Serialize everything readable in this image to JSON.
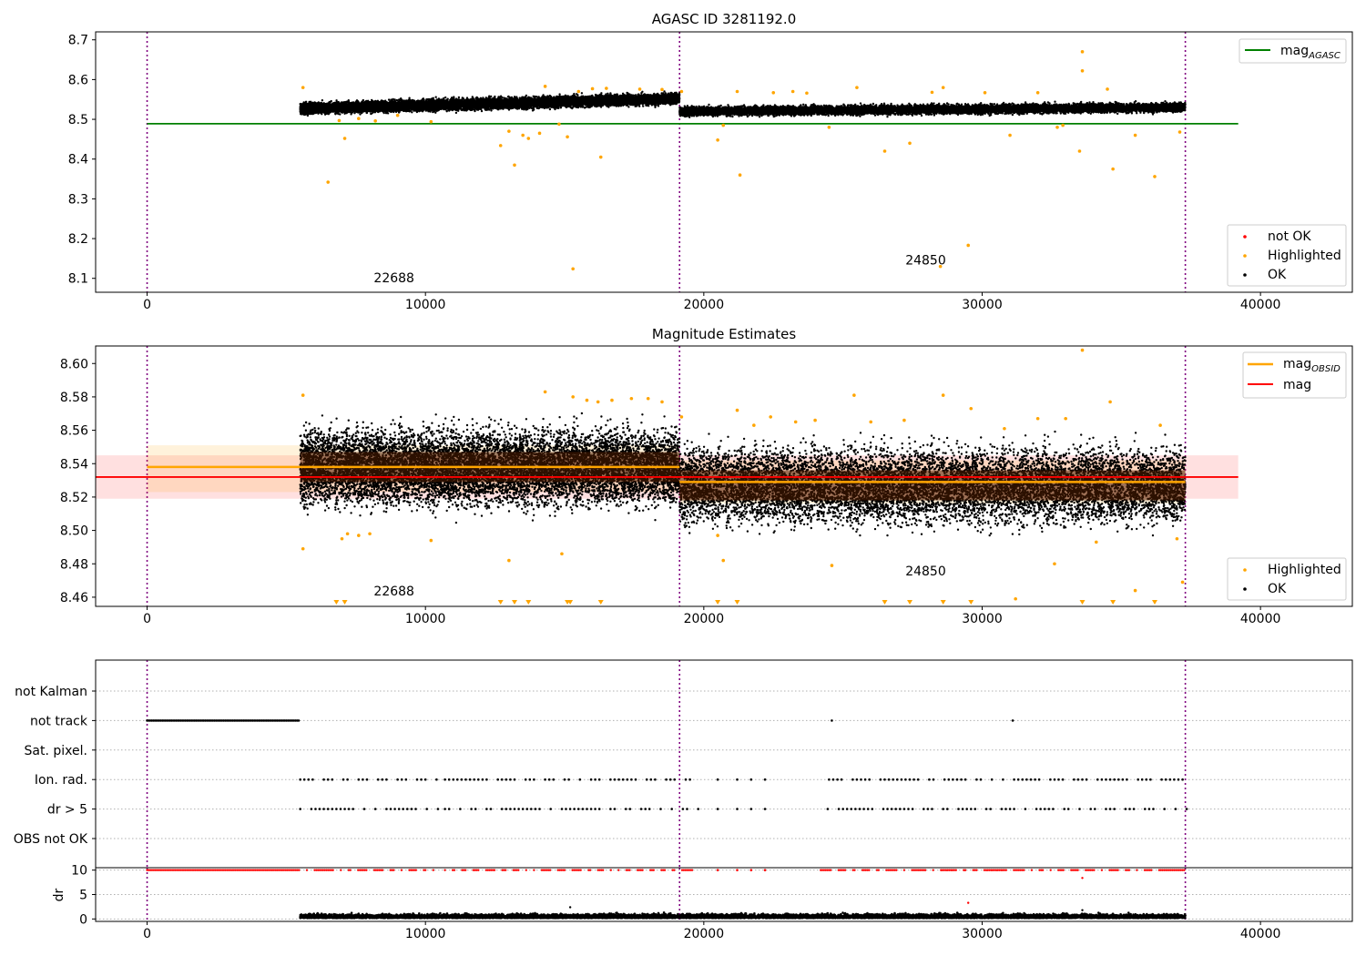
{
  "chart_data": [
    {
      "type": "scatter",
      "title": "AGASC ID 3281192.0",
      "xlim": [
        -1850,
        43300
      ],
      "ylim": [
        8.065,
        8.72
      ],
      "xticks": [
        0,
        10000,
        20000,
        30000,
        40000
      ],
      "yticks": [
        8.1,
        8.2,
        8.3,
        8.4,
        8.5,
        8.6,
        8.7
      ],
      "vlines": [
        0,
        19130,
        37300
      ],
      "mag_agasc": {
        "y": 8.489,
        "x0": 0,
        "x1": 39200
      },
      "obsid_labels": [
        {
          "text": "22688",
          "x": 9600,
          "y": 8.09
        },
        {
          "text": "24850",
          "x": 28700,
          "y": 8.135
        }
      ],
      "legend_top": [
        {
          "label": "mag",
          "sub": "AGASC",
          "color": "#008000"
        }
      ],
      "legend_bottom": [
        {
          "label": "not OK",
          "color": "#ff0000"
        },
        {
          "label": "Highlighted",
          "color": "#ffa500"
        },
        {
          "label": "OK",
          "color": "#000000"
        }
      ],
      "segments": [
        {
          "x0": 5500,
          "x1": 19130,
          "center": 8.538,
          "spread": 0.012,
          "trend": [
            8.527,
            8.552
          ]
        },
        {
          "x0": 19130,
          "x1": 37300,
          "center": 8.525,
          "spread": 0.01,
          "trend": [
            8.52,
            8.53
          ]
        }
      ],
      "highlighted": [
        [
          5600,
          8.58
        ],
        [
          6500,
          8.342
        ],
        [
          6900,
          8.497
        ],
        [
          7100,
          8.452
        ],
        [
          7600,
          8.502
        ],
        [
          8200,
          8.496
        ],
        [
          9000,
          8.51
        ],
        [
          10200,
          8.494
        ],
        [
          12700,
          8.434
        ],
        [
          13000,
          8.47
        ],
        [
          13200,
          8.385
        ],
        [
          13500,
          8.46
        ],
        [
          13700,
          8.452
        ],
        [
          14100,
          8.465
        ],
        [
          14300,
          8.583
        ],
        [
          14800,
          8.488
        ],
        [
          15100,
          8.456
        ],
        [
          15300,
          8.124
        ],
        [
          15500,
          8.57
        ],
        [
          16000,
          8.577
        ],
        [
          16300,
          8.405
        ],
        [
          16500,
          8.578
        ],
        [
          17700,
          8.576
        ],
        [
          18500,
          8.575
        ],
        [
          19200,
          8.57
        ],
        [
          20500,
          8.448
        ],
        [
          20700,
          8.485
        ],
        [
          21200,
          8.57
        ],
        [
          21300,
          8.36
        ],
        [
          22500,
          8.567
        ],
        [
          23200,
          8.57
        ],
        [
          23700,
          8.566
        ],
        [
          24500,
          8.48
        ],
        [
          25500,
          8.58
        ],
        [
          26500,
          8.42
        ],
        [
          27400,
          8.44
        ],
        [
          28200,
          8.568
        ],
        [
          28500,
          8.13
        ],
        [
          28600,
          8.58
        ],
        [
          29500,
          8.183
        ],
        [
          30100,
          8.567
        ],
        [
          31000,
          8.46
        ],
        [
          32000,
          8.567
        ],
        [
          32700,
          8.48
        ],
        [
          32900,
          8.485
        ],
        [
          33500,
          8.42
        ],
        [
          33600,
          8.67
        ],
        [
          33600,
          8.622
        ],
        [
          34500,
          8.576
        ],
        [
          34700,
          8.375
        ],
        [
          35500,
          8.46
        ],
        [
          36200,
          8.356
        ],
        [
          37100,
          8.468
        ]
      ]
    },
    {
      "type": "scatter",
      "title": "Magnitude Estimates",
      "xlim": [
        -1850,
        43300
      ],
      "ylim": [
        8.4545,
        8.6105
      ],
      "xticks": [
        0,
        10000,
        20000,
        30000,
        40000
      ],
      "yticks": [
        8.46,
        8.48,
        8.5,
        8.52,
        8.54,
        8.56,
        8.58,
        8.6
      ],
      "vlines": [
        0,
        19130,
        37300
      ],
      "mag": {
        "y": 8.532,
        "band": [
          8.519,
          8.545
        ],
        "x0": -1850,
        "x1": 39200
      },
      "mag_obsid": [
        {
          "x0": 0,
          "x1": 19130,
          "y": 8.538,
          "band": [
            8.523,
            8.551
          ]
        },
        {
          "x0": 19130,
          "x1": 37300,
          "y": 8.529,
          "band": [
            8.516,
            8.542
          ]
        }
      ],
      "obsid_labels": [
        {
          "text": "22688",
          "x": 9600,
          "y": 8.461
        },
        {
          "text": "24850",
          "x": 28700,
          "y": 8.473
        }
      ],
      "legend_top": [
        {
          "label": "mag",
          "sub": "OBSID",
          "color": "#ffa500"
        },
        {
          "label": "mag",
          "sub": "",
          "color": "#ff0000"
        }
      ],
      "legend_bottom": [
        {
          "label": "Highlighted",
          "color": "#ffa500"
        },
        {
          "label": "OK",
          "color": "#000000"
        }
      ],
      "highlighted": [
        [
          5600,
          8.581
        ],
        [
          5600,
          8.489
        ],
        [
          7000,
          8.495
        ],
        [
          7200,
          8.498
        ],
        [
          7600,
          8.497
        ],
        [
          8000,
          8.498
        ],
        [
          10200,
          8.494
        ],
        [
          13000,
          8.482
        ],
        [
          14300,
          8.583
        ],
        [
          14900,
          8.486
        ],
        [
          15300,
          8.58
        ],
        [
          15800,
          8.578
        ],
        [
          16200,
          8.577
        ],
        [
          16700,
          8.578
        ],
        [
          17400,
          8.579
        ],
        [
          18000,
          8.579
        ],
        [
          18500,
          8.577
        ],
        [
          19200,
          8.568
        ],
        [
          20500,
          8.497
        ],
        [
          20700,
          8.482
        ],
        [
          21200,
          8.572
        ],
        [
          21800,
          8.563
        ],
        [
          22400,
          8.568
        ],
        [
          23300,
          8.565
        ],
        [
          24000,
          8.566
        ],
        [
          24600,
          8.479
        ],
        [
          25400,
          8.581
        ],
        [
          26000,
          8.565
        ],
        [
          27200,
          8.566
        ],
        [
          28600,
          8.581
        ],
        [
          29600,
          8.573
        ],
        [
          30800,
          8.561
        ],
        [
          31200,
          8.459
        ],
        [
          32000,
          8.567
        ],
        [
          32600,
          8.48
        ],
        [
          33000,
          8.567
        ],
        [
          33600,
          8.608
        ],
        [
          34100,
          8.493
        ],
        [
          34600,
          8.577
        ],
        [
          35500,
          8.464
        ],
        [
          36400,
          8.563
        ],
        [
          37000,
          8.495
        ],
        [
          37200,
          8.469
        ]
      ],
      "clipped": [
        6800,
        7100,
        12700,
        13200,
        13700,
        15100,
        15200,
        16300,
        20500,
        21200,
        26500,
        27400,
        28600,
        29600,
        33600,
        34700,
        36200
      ]
    },
    {
      "type": "scatter",
      "xlim": [
        -1850,
        43300
      ],
      "xticks": [
        0,
        10000,
        20000,
        30000,
        40000
      ],
      "vlines": [
        0,
        19130,
        37300
      ],
      "categories": [
        "not Kalman",
        "not track",
        "Sat. pixel.",
        "Ion. rad.",
        "dr > 5",
        "OBS not OK"
      ],
      "flag_rows": [
        {
          "category": "not track",
          "ranges": [
            [
              0,
              5450
            ]
          ],
          "points": [
            24600,
            31100
          ]
        },
        {
          "category": "Ion. rad.",
          "ranges": [
            [
              5500,
              10300
            ],
            [
              10700,
              19600
            ],
            [
              24500,
              37300
            ]
          ],
          "points": [
            20500,
            21200,
            21700,
            22200
          ]
        },
        {
          "category": "dr > 5",
          "ranges": [
            [
              5500,
              10300
            ],
            [
              10700,
              19600
            ],
            [
              24200,
              37300
            ]
          ],
          "points": [
            20500,
            21200,
            21700,
            22200
          ]
        }
      ]
    },
    {
      "type": "scatter",
      "ylabel": "dr",
      "xlim": [
        -1850,
        43300
      ],
      "ylim": [
        -0.5,
        10.5
      ],
      "xticks": [
        0,
        10000,
        20000,
        30000,
        40000
      ],
      "yticks": [
        0,
        5,
        10
      ],
      "vlines": [
        0,
        19130,
        37300
      ],
      "dr_flag_ranges": [
        [
          0,
          10300
        ],
        [
          10700,
          19600
        ],
        [
          24200,
          37300
        ]
      ],
      "dr_flag_points": [
        20500,
        21200,
        21700,
        22200
      ],
      "dr_ok_range": [
        5500,
        37300
      ],
      "dr_outliers": [
        [
          15200,
          2.4
        ],
        [
          29500,
          3.3
        ],
        [
          33600,
          8.4
        ],
        [
          33600,
          1.8
        ],
        [
          28500,
          1.2
        ]
      ]
    }
  ]
}
